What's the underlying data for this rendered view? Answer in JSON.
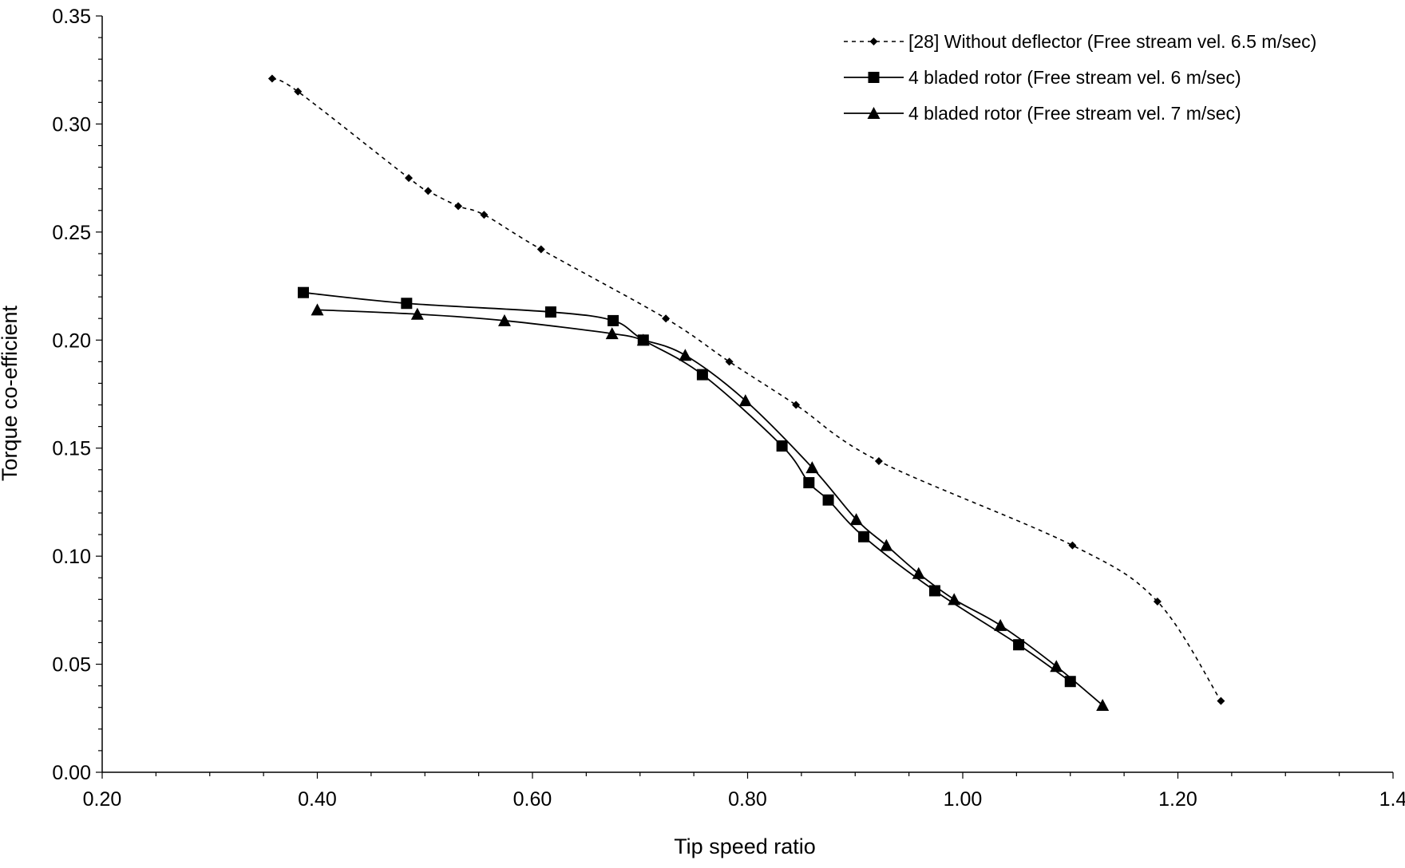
{
  "chart_data": {
    "type": "line",
    "title": "",
    "xlabel": "Tip speed ratio",
    "ylabel": "Torque co-efficient",
    "xlim": [
      0.2,
      1.4
    ],
    "ylim": [
      0.0,
      0.35
    ],
    "x_ticks": [
      "0.20",
      "0.40",
      "0.60",
      "0.80",
      "1.00",
      "1.20",
      "1.4"
    ],
    "y_ticks": [
      "0.00",
      "0.05",
      "0.10",
      "0.15",
      "0.20",
      "0.25",
      "0.30",
      "0.35"
    ],
    "grid": false,
    "legend_position": "top-right",
    "series": [
      {
        "name": "[28] Without deflector (Free stream vel. 6.5 m/sec)",
        "marker": "diamond",
        "line_style": "dashed",
        "color": "#000000",
        "x": [
          0.358,
          0.382,
          0.485,
          0.503,
          0.531,
          0.555,
          0.608,
          0.724,
          0.783,
          0.845,
          0.922,
          1.102,
          1.181,
          1.24
        ],
        "y": [
          0.321,
          0.315,
          0.275,
          0.269,
          0.262,
          0.258,
          0.242,
          0.21,
          0.19,
          0.17,
          0.144,
          0.105,
          0.079,
          0.033
        ]
      },
      {
        "name": "4 bladed rotor (Free stream vel. 6 m/sec)",
        "marker": "square",
        "line_style": "solid",
        "color": "#000000",
        "x": [
          0.387,
          0.483,
          0.617,
          0.675,
          0.703,
          0.758,
          0.832,
          0.857,
          0.875,
          0.908,
          0.974,
          1.052,
          1.1
        ],
        "y": [
          0.222,
          0.217,
          0.213,
          0.209,
          0.2,
          0.184,
          0.151,
          0.134,
          0.126,
          0.109,
          0.084,
          0.059,
          0.042
        ]
      },
      {
        "name": "4 bladed rotor (Free stream vel. 7 m/sec)",
        "marker": "triangle",
        "line_style": "solid",
        "color": "#000000",
        "x": [
          0.4,
          0.493,
          0.574,
          0.674,
          0.703,
          0.742,
          0.798,
          0.86,
          0.901,
          0.929,
          0.959,
          0.992,
          1.035,
          1.087,
          1.13
        ],
        "y": [
          0.214,
          0.212,
          0.209,
          0.203,
          0.2,
          0.193,
          0.172,
          0.141,
          0.117,
          0.105,
          0.092,
          0.08,
          0.068,
          0.049,
          0.031
        ]
      }
    ]
  }
}
